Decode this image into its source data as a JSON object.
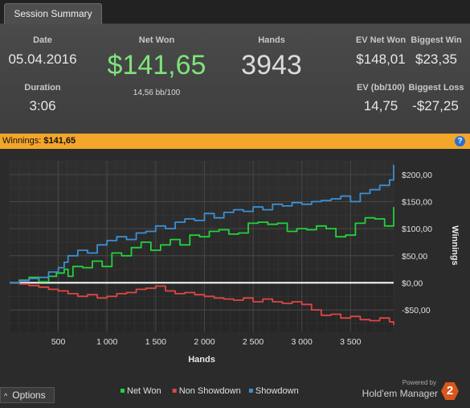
{
  "tab": {
    "label": "Session Summary"
  },
  "summary": {
    "date_label": "Date",
    "date_value": "05.04.2016",
    "duration_label": "Duration",
    "duration_value": "3:06",
    "net_won_label": "Net Won",
    "net_won_value": "$141,65",
    "net_won_sub": "14,56 bb/100",
    "hands_label": "Hands",
    "hands_value": "3943",
    "ev_net_won_label": "EV Net Won",
    "ev_net_won_value": "$148,01",
    "biggest_win_label": "Biggest Win",
    "biggest_win_value": "$23,35",
    "ev_bb100_label": "EV (bb/100)",
    "ev_bb100_value": "14,75",
    "biggest_loss_label": "Biggest Loss",
    "biggest_loss_value": "-$27,25"
  },
  "winnings_bar": {
    "label": "Winnings:",
    "value": "$141,65",
    "help_icon": "question-icon"
  },
  "options": {
    "label": "Options",
    "icon": "chevron-up-icon"
  },
  "branding": {
    "powered": "Powered by",
    "name": "Hold'em Manager",
    "logo_text": "2"
  },
  "colors": {
    "net_won": "#22d33a",
    "non_showdown": "#e04545",
    "showdown": "#3b8fd4",
    "net_won_big": "#7ee37a",
    "orange_bar": "#f2a62b"
  },
  "chart_data": {
    "type": "line",
    "xlabel": "Hands",
    "ylabel": "Winnings",
    "xlim": [
      0,
      3943
    ],
    "ylim": [
      -90,
      225
    ],
    "x_ticks": [
      500,
      1000,
      1500,
      2000,
      2500,
      3000,
      3500
    ],
    "x_tick_labels": [
      "500",
      "1 000",
      "1 500",
      "2 000",
      "2 500",
      "3 000",
      "3 500"
    ],
    "y_ticks": [
      -50,
      0,
      50,
      100,
      150,
      200
    ],
    "y_tick_labels": [
      "-$50,00",
      "$0,00",
      "$50,00",
      "$100,00",
      "$150,00",
      "$200,00"
    ],
    "grid": true,
    "legend_position": "bottom",
    "series": [
      {
        "name": "Net Won",
        "color": "#22d33a",
        "x": [
          0,
          100,
          200,
          300,
          400,
          480,
          560,
          600,
          650,
          750,
          850,
          950,
          1050,
          1150,
          1250,
          1350,
          1450,
          1550,
          1650,
          1750,
          1850,
          1950,
          2050,
          2150,
          2250,
          2350,
          2450,
          2550,
          2650,
          2750,
          2850,
          2950,
          3050,
          3150,
          3250,
          3350,
          3450,
          3550,
          3650,
          3750,
          3850,
          3943
        ],
        "y": [
          0,
          5,
          10,
          2,
          12,
          18,
          25,
          12,
          30,
          28,
          40,
          30,
          55,
          50,
          65,
          75,
          60,
          70,
          80,
          70,
          88,
          85,
          95,
          98,
          90,
          92,
          110,
          112,
          108,
          110,
          95,
          100,
          98,
          105,
          100,
          85,
          88,
          110,
          120,
          118,
          105,
          140
        ]
      },
      {
        "name": "Non Showdown",
        "color": "#e04545",
        "x": [
          0,
          100,
          200,
          300,
          400,
          500,
          600,
          700,
          800,
          900,
          1000,
          1100,
          1200,
          1300,
          1400,
          1500,
          1600,
          1700,
          1800,
          1900,
          2000,
          2100,
          2200,
          2300,
          2400,
          2500,
          2600,
          2700,
          2800,
          2900,
          3000,
          3100,
          3200,
          3300,
          3400,
          3500,
          3600,
          3700,
          3800,
          3900,
          3943
        ],
        "y": [
          0,
          -2,
          -5,
          -8,
          -12,
          -15,
          -20,
          -25,
          -22,
          -28,
          -25,
          -20,
          -18,
          -12,
          -10,
          -6,
          -15,
          -20,
          -18,
          -22,
          -25,
          -28,
          -30,
          -32,
          -28,
          -35,
          -30,
          -35,
          -38,
          -35,
          -40,
          -50,
          -60,
          -58,
          -65,
          -62,
          -68,
          -70,
          -65,
          -72,
          -78
        ]
      },
      {
        "name": "Showdown",
        "color": "#3b8fd4",
        "x": [
          0,
          100,
          200,
          300,
          400,
          500,
          560,
          600,
          700,
          800,
          900,
          1000,
          1100,
          1200,
          1300,
          1400,
          1500,
          1600,
          1700,
          1800,
          1900,
          2000,
          2100,
          2200,
          2300,
          2400,
          2500,
          2600,
          2700,
          2800,
          2900,
          3000,
          3100,
          3200,
          3300,
          3400,
          3500,
          3600,
          3700,
          3800,
          3900,
          3943
        ],
        "y": [
          0,
          4,
          8,
          10,
          20,
          28,
          38,
          50,
          60,
          55,
          70,
          78,
          85,
          80,
          92,
          95,
          105,
          100,
          112,
          118,
          115,
          128,
          120,
          130,
          135,
          132,
          140,
          135,
          145,
          142,
          148,
          145,
          150,
          152,
          155,
          160,
          150,
          165,
          172,
          180,
          190,
          218
        ]
      }
    ]
  }
}
